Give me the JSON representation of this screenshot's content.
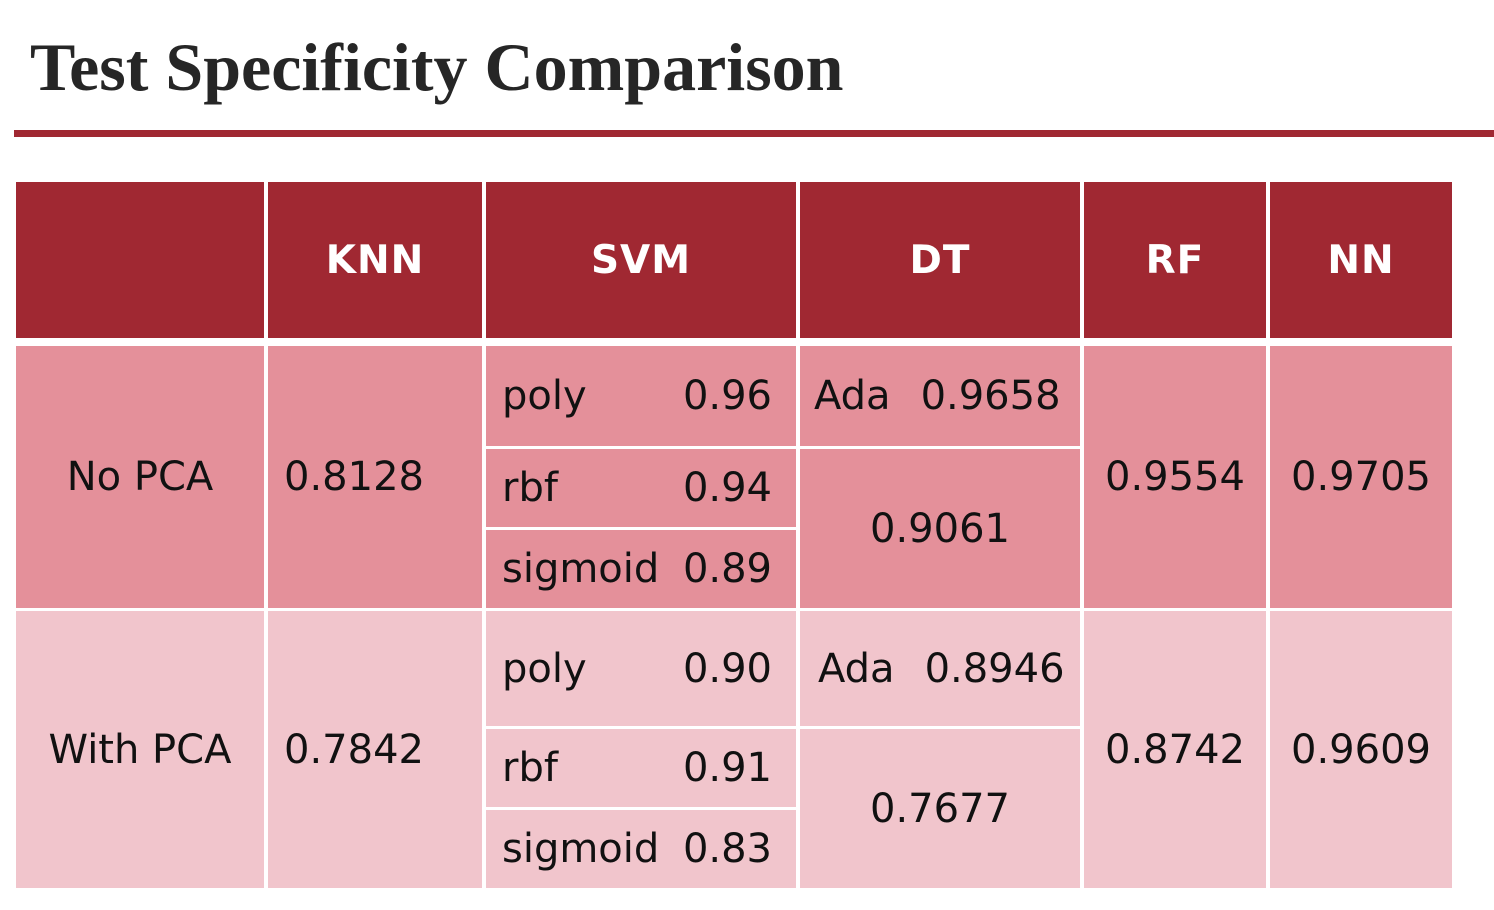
{
  "title": "Test Specificity Comparison",
  "colors": {
    "header": "#a02832",
    "row_no_pca": "#e4909a",
    "row_with_pca": "#f1c5cc"
  },
  "table": {
    "headers": [
      "",
      "KNN",
      "SVM",
      "DT",
      "RF",
      "NN"
    ],
    "rows": [
      {
        "label": "No PCA",
        "knn": "0.8128",
        "svm": [
          {
            "kernel": "poly",
            "value": "0.96"
          },
          {
            "kernel": "rbf",
            "value": "0.94"
          },
          {
            "kernel": "sigmoid",
            "value": "0.89"
          }
        ],
        "dt_ada": {
          "label": "Ada",
          "value": "0.9658"
        },
        "dt": "0.9061",
        "rf": "0.9554",
        "nn": "0.9705"
      },
      {
        "label": "With PCA",
        "knn": "0.7842",
        "svm": [
          {
            "kernel": "poly",
            "value": "0.90"
          },
          {
            "kernel": "rbf",
            "value": "0.91"
          },
          {
            "kernel": "sigmoid",
            "value": "0.83"
          }
        ],
        "dt_ada": {
          "label": "Ada",
          "value": "0.8946"
        },
        "dt": "0.7677",
        "rf": "0.8742",
        "nn": "0.9609"
      }
    ]
  }
}
